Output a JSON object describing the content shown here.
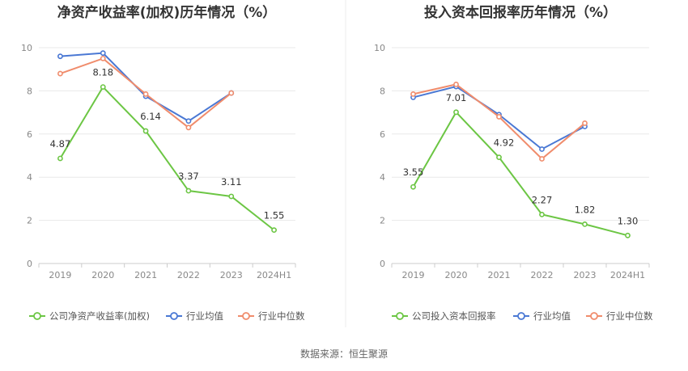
{
  "source": "数据来源：恒生聚源",
  "colors": {
    "company": "#6cc644",
    "avg": "#4a78d4",
    "median": "#f08c6c"
  },
  "chart_data": [
    {
      "type": "line",
      "title": "净资产收益率(加权)历年情况（%）",
      "categories": [
        "2019",
        "2020",
        "2021",
        "2022",
        "2023",
        "2024H1"
      ],
      "ylim": [
        0,
        10
      ],
      "yticks": [
        0,
        2,
        4,
        6,
        8,
        10
      ],
      "grid": true,
      "legend_position": "bottom",
      "series": [
        {
          "name": "公司净资产收益率(加权)",
          "key": "company",
          "values": [
            4.87,
            8.18,
            6.14,
            3.37,
            3.11,
            1.55
          ],
          "labels": [
            "4.87",
            "8.18",
            "6.14",
            "3.37",
            "3.11",
            "1.55"
          ]
        },
        {
          "name": "行业均值",
          "key": "avg",
          "values": [
            9.6,
            9.75,
            7.75,
            6.6,
            7.9,
            null
          ]
        },
        {
          "name": "行业中位数",
          "key": "median",
          "values": [
            8.8,
            9.5,
            7.85,
            6.3,
            7.9,
            null
          ]
        }
      ]
    },
    {
      "type": "line",
      "title": "投入资本回报率历年情况（%）",
      "categories": [
        "2019",
        "2020",
        "2021",
        "2022",
        "2023",
        "2024H1"
      ],
      "ylim": [
        0,
        10
      ],
      "yticks": [
        0,
        2,
        4,
        6,
        8,
        10
      ],
      "grid": true,
      "legend_position": "bottom",
      "series": [
        {
          "name": "公司投入资本回报率",
          "key": "company",
          "values": [
            3.55,
            7.01,
            4.92,
            2.27,
            1.82,
            1.3
          ],
          "labels": [
            "3.55",
            "7.01",
            "4.92",
            "2.27",
            "1.82",
            "1.30"
          ]
        },
        {
          "name": "行业均值",
          "key": "avg",
          "values": [
            7.7,
            8.2,
            6.9,
            5.3,
            6.35,
            null
          ]
        },
        {
          "name": "行业中位数",
          "key": "median",
          "values": [
            7.85,
            8.3,
            6.8,
            4.85,
            6.5,
            null
          ]
        }
      ]
    }
  ]
}
